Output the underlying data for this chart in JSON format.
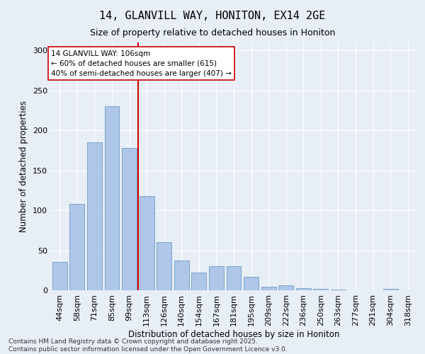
{
  "title1": "14, GLANVILL WAY, HONITON, EX14 2GE",
  "title2": "Size of property relative to detached houses in Honiton",
  "xlabel": "Distribution of detached houses by size in Honiton",
  "ylabel": "Number of detached properties",
  "categories": [
    "44sqm",
    "58sqm",
    "71sqm",
    "85sqm",
    "99sqm",
    "113sqm",
    "126sqm",
    "140sqm",
    "154sqm",
    "167sqm",
    "181sqm",
    "195sqm",
    "209sqm",
    "222sqm",
    "236sqm",
    "250sqm",
    "263sqm",
    "277sqm",
    "291sqm",
    "304sqm",
    "318sqm"
  ],
  "values": [
    35,
    108,
    185,
    230,
    178,
    118,
    60,
    37,
    22,
    30,
    30,
    17,
    4,
    6,
    3,
    2,
    1,
    0,
    0,
    2,
    0
  ],
  "bar_color": "#aec6e8",
  "bar_edge_color": "#5a8fc0",
  "vline_color": "#cc0000",
  "annotation_text": "14 GLANVILL WAY: 106sqm\n← 60% of detached houses are smaller (615)\n40% of semi-detached houses are larger (407) →",
  "annotation_box_color": "#ffffff",
  "annotation_box_edge": "#cc0000",
  "bg_color": "#e8eef6",
  "grid_color": "#ffffff",
  "footer": "Contains HM Land Registry data © Crown copyright and database right 2025.\nContains public sector information licensed under the Open Government Licence v3.0.",
  "ylim": [
    0,
    310
  ],
  "yticks": [
    0,
    50,
    100,
    150,
    200,
    250,
    300
  ]
}
